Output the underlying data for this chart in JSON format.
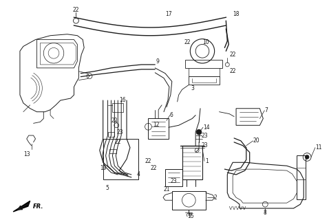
{
  "bg_color": "#ffffff",
  "line_color": "#1a1a1a",
  "figsize": [
    4.78,
    3.2
  ],
  "dpi": 100,
  "label_fontsize": 5.5,
  "lw_main": 0.8,
  "lw_thin": 0.5
}
